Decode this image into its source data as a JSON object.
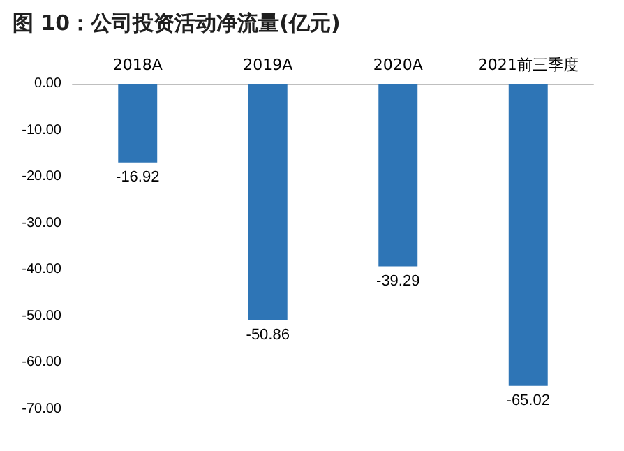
{
  "chart_data": {
    "type": "bar",
    "title": "图 10：公司投资活动净流量(亿元)",
    "categories": [
      "2018A",
      "2019A",
      "2020A",
      "2021前三季度"
    ],
    "values": [
      -16.92,
      -50.86,
      -39.29,
      -65.02
    ],
    "color": "#2e75b6",
    "ylim": [
      -70,
      0
    ],
    "yticks": [
      {
        "value": 0,
        "label": "0.00"
      },
      {
        "value": -10,
        "label": "-10.00"
      },
      {
        "value": -20,
        "label": "-20.00"
      },
      {
        "value": -30,
        "label": "-30.00"
      },
      {
        "value": -40,
        "label": "-40.00"
      },
      {
        "value": -50,
        "label": "-50.00"
      },
      {
        "value": -60,
        "label": "-60.00"
      },
      {
        "value": -70,
        "label": "-70.00"
      }
    ],
    "data_labels": true
  }
}
